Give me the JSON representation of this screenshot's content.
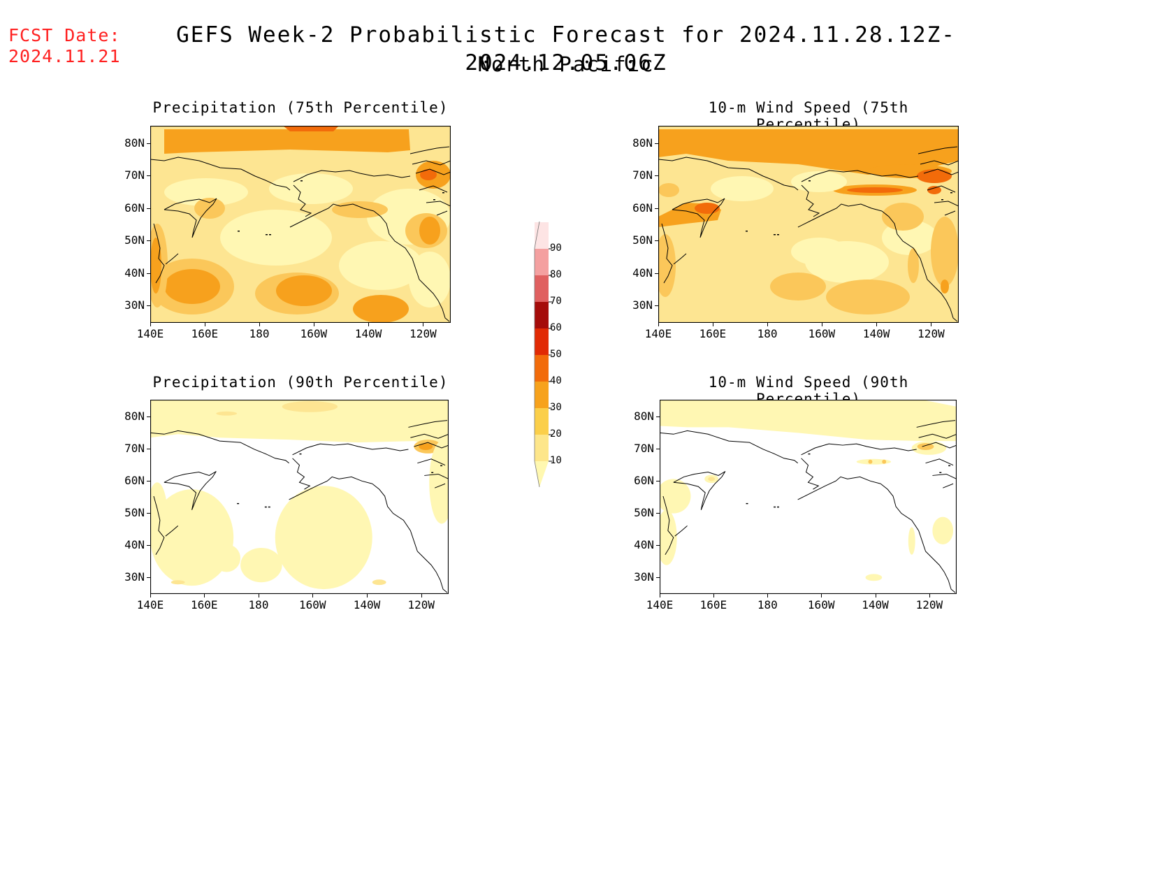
{
  "header": {
    "fcst_label": "FCST Date:",
    "fcst_date": "2024.11.21",
    "title": "GEFS Week-2 Probabilistic Forecast for 2024.11.28.12Z-2024.12.05.06Z",
    "subtitle": "North Pacific"
  },
  "panels": [
    {
      "id": "precip75",
      "title": "Precipitation (75th Percentile)"
    },
    {
      "id": "wind75",
      "title": "10-m Wind Speed (75th Percentile)"
    },
    {
      "id": "precip90",
      "title": "Precipitation (90th Percentile)"
    },
    {
      "id": "wind90",
      "title": "10-m Wind Speed (90th Percentile)"
    }
  ],
  "axes": {
    "lat_ticks": [
      "80N",
      "70N",
      "60N",
      "50N",
      "40N",
      "30N"
    ],
    "lon_ticks": [
      "140E",
      "160E",
      "180",
      "160W",
      "140W",
      "120W"
    ]
  },
  "colorbar": {
    "levels": [
      "10",
      "20",
      "30",
      "40",
      "50",
      "60",
      "70",
      "80",
      "90"
    ],
    "colors": [
      "#fff8b0",
      "#fde68a",
      "#fbcf4a",
      "#f7a21c",
      "#f26b0a",
      "#e12a04",
      "#a50c0a",
      "#e06060",
      "#f4a0a0",
      "#fde4e4"
    ]
  },
  "map_colors": {
    "c10": "#fff7b3",
    "c20": "#fde592",
    "c30": "#fbc75a",
    "c40": "#f7a11d",
    "c50": "#f26b0a",
    "c60": "#d92b05",
    "coast": "#000000"
  }
}
